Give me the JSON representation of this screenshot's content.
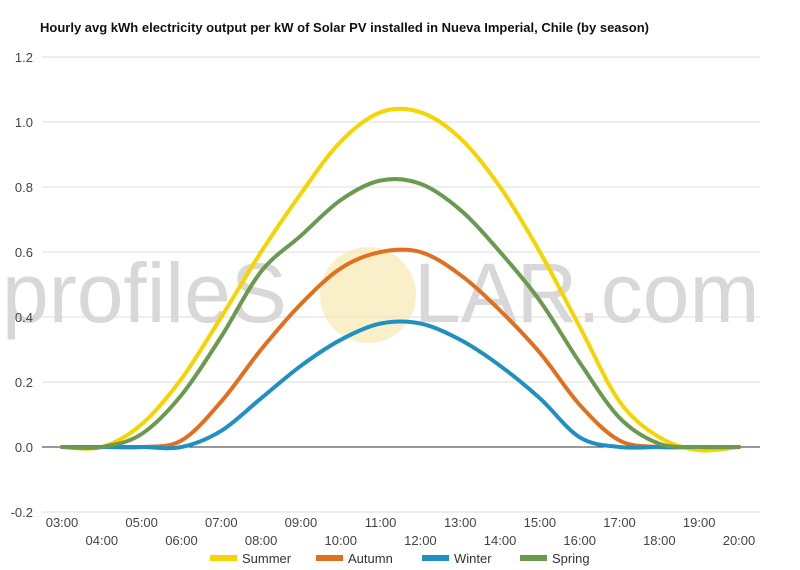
{
  "watermark": {
    "left": "profileS",
    "right": "LAR.com"
  },
  "chart_data": {
    "type": "line",
    "title": "Hourly avg kWh electricity output per kW of Solar PV installed in Nueva Imperial, Chile (by season)",
    "xlabel": "",
    "ylabel": "",
    "ylim": [
      -0.2,
      1.2
    ],
    "yticks": [
      "-0.2",
      "0.0",
      "0.2",
      "0.4",
      "0.6",
      "0.8",
      "1.0",
      "1.2"
    ],
    "ytick_values": [
      -0.2,
      0,
      0.2,
      0.4,
      0.6,
      0.8,
      1.0,
      1.2
    ],
    "x": [
      "03:00",
      "04:00",
      "05:00",
      "06:00",
      "07:00",
      "08:00",
      "09:00",
      "10:00",
      "11:00",
      "12:00",
      "13:00",
      "14:00",
      "15:00",
      "16:00",
      "17:00",
      "18:00",
      "19:00",
      "20:00"
    ],
    "grid": true,
    "legend": "bottom",
    "series": [
      {
        "name": "Summer",
        "color": "#f5d400",
        "values": [
          0,
          0,
          0.07,
          0.21,
          0.4,
          0.6,
          0.78,
          0.94,
          1.03,
          1.03,
          0.95,
          0.8,
          0.6,
          0.37,
          0.14,
          0.03,
          -0.01,
          0
        ]
      },
      {
        "name": "Autumn",
        "color": "#e07020",
        "values": [
          0,
          0,
          0,
          0.02,
          0.14,
          0.3,
          0.44,
          0.55,
          0.6,
          0.6,
          0.53,
          0.42,
          0.29,
          0.13,
          0.02,
          0,
          0,
          0
        ]
      },
      {
        "name": "Winter",
        "color": "#2090c0",
        "values": [
          0,
          0,
          0,
          0,
          0.05,
          0.15,
          0.25,
          0.33,
          0.38,
          0.38,
          0.33,
          0.25,
          0.15,
          0.03,
          0,
          0,
          0,
          0
        ]
      },
      {
        "name": "Spring",
        "color": "#6a9a50",
        "values": [
          0,
          0,
          0.04,
          0.16,
          0.34,
          0.54,
          0.65,
          0.76,
          0.82,
          0.81,
          0.73,
          0.6,
          0.45,
          0.26,
          0.09,
          0.01,
          0,
          0
        ]
      }
    ]
  }
}
